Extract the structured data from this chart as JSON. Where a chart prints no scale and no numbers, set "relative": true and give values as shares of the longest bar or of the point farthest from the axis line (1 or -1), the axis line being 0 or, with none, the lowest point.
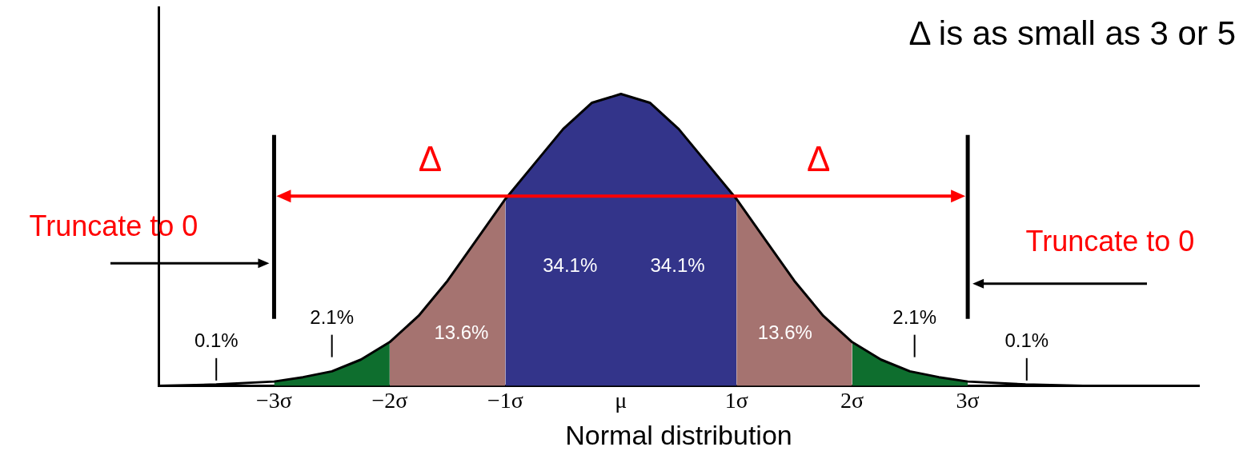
{
  "chart_data": {
    "type": "area",
    "title": "Δ is as small as 3 or 5",
    "xlabel": "Normal distribution",
    "relative": true,
    "legend": false,
    "grid": false,
    "xlim": [
      -4,
      5
    ],
    "xticks": [
      {
        "value": -3,
        "label": "−3σ"
      },
      {
        "value": -2,
        "label": "−2σ"
      },
      {
        "value": -1,
        "label": "−1σ"
      },
      {
        "value": 0,
        "label": "μ"
      },
      {
        "value": 1,
        "label": "1σ"
      },
      {
        "value": 2,
        "label": "2σ"
      },
      {
        "value": 3,
        "label": "3σ"
      }
    ],
    "series": [
      {
        "type": "area",
        "color": "#0e6e2e",
        "x": [
          -3,
          -2.75,
          -2.5,
          -2.25,
          -2
        ],
        "values": [
          0.015,
          0.03,
          0.05,
          0.09,
          0.15
        ]
      },
      {
        "type": "area",
        "color": "#a57370",
        "x": [
          -2,
          -1.75,
          -1.5,
          -1.25,
          -1
        ],
        "values": [
          0.15,
          0.24,
          0.36,
          0.5,
          0.64
        ]
      },
      {
        "type": "area",
        "color": "#33348a",
        "x": [
          -1,
          -0.75,
          -0.5,
          -0.25,
          0,
          0.25,
          0.5,
          0.75,
          1
        ],
        "values": [
          0.64,
          0.76,
          0.88,
          0.97,
          1,
          0.97,
          0.88,
          0.76,
          0.64
        ]
      },
      {
        "type": "area",
        "color": "#a57370",
        "x": [
          1,
          1.25,
          1.5,
          1.75,
          2
        ],
        "values": [
          0.64,
          0.5,
          0.36,
          0.24,
          0.15
        ]
      },
      {
        "type": "area",
        "color": "#0e6e2e",
        "x": [
          2,
          2.25,
          2.5,
          2.75,
          3
        ],
        "values": [
          0.15,
          0.09,
          0.05,
          0.03,
          0.015
        ]
      },
      {
        "type": "line",
        "color": "#000000",
        "x": [
          -4,
          -3.5,
          -3,
          -2.75,
          -2.5,
          -2.25,
          -2,
          -1.75,
          -1.5,
          -1.25,
          -1,
          -0.75,
          -0.5,
          -0.25,
          0,
          0.25,
          0.5,
          0.75,
          1,
          1.25,
          1.5,
          1.75,
          2,
          2.25,
          2.5,
          2.75,
          3,
          3.5,
          4
        ],
        "values": [
          0,
          0.005,
          0.015,
          0.03,
          0.05,
          0.09,
          0.15,
          0.24,
          0.36,
          0.5,
          0.64,
          0.76,
          0.88,
          0.97,
          1,
          0.97,
          0.88,
          0.76,
          0.64,
          0.5,
          0.36,
          0.24,
          0.15,
          0.09,
          0.05,
          0.03,
          0.015,
          0.005,
          0
        ]
      }
    ],
    "ref_lines": [
      {
        "axis": "x",
        "value": -3,
        "color": "#000000"
      },
      {
        "axis": "x",
        "value": 3,
        "color": "#000000"
      }
    ],
    "annotations": [
      "Δ",
      "Δ",
      "Truncate to 0",
      "Truncate to 0",
      "34.1%",
      "34.1%",
      "13.6%",
      "13.6%",
      "2.1%",
      "2.1%",
      "0.1%",
      "0.1%"
    ]
  }
}
